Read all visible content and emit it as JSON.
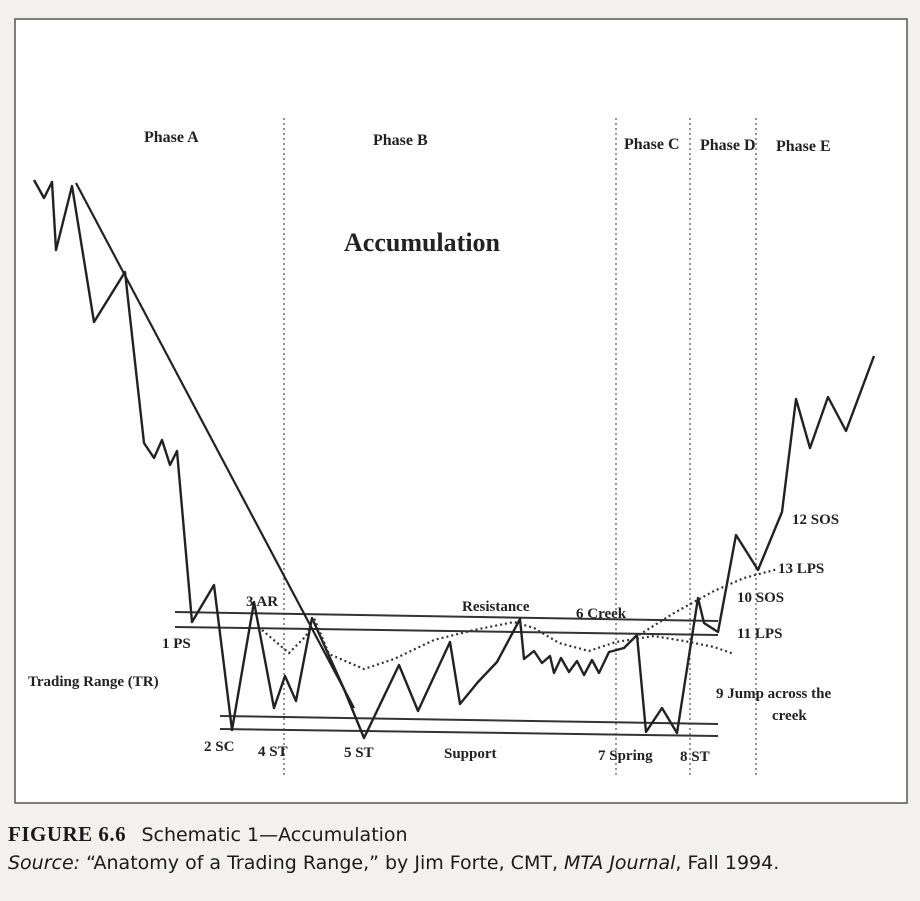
{
  "title": "Accumulation",
  "phases": [
    "Phase A",
    "Phase B",
    "Phase C",
    "Phase D",
    "Phase E"
  ],
  "labels": {
    "ps": "1 PS",
    "sc": "2 SC",
    "ar": "3 AR",
    "st4": "4 ST",
    "st5": "5 ST",
    "creek": "6 Creek",
    "spring": "7 Spring",
    "st8": "8 ST",
    "jump1": "9 Jump across the",
    "jump2": "creek",
    "sos10": "10 SOS",
    "lps11": "11 LPS",
    "sos12": "12 SOS",
    "lps13": "13 LPS",
    "resistance": "Resistance",
    "support": "Support",
    "trading_range": "Trading Range (TR)"
  },
  "caption": {
    "figure_number": "FIGURE 6.6",
    "figure_title": "Schematic 1—Accumulation",
    "source_label": "Source:",
    "source_text1": "“Anatomy of a Trading Range,” by Jim Forte, CMT, ",
    "source_journal": "MTA Journal",
    "source_text2": ", Fall 1994."
  }
}
